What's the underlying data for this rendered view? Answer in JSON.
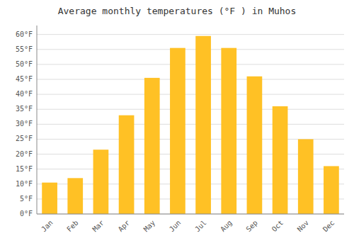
{
  "chart_data": {
    "type": "bar",
    "title": "Average monthly temperatures (°F ) in Muhos",
    "categories": [
      "Jan",
      "Feb",
      "Mar",
      "Apr",
      "May",
      "Jun",
      "Jul",
      "Aug",
      "Sep",
      "Oct",
      "Nov",
      "Dec"
    ],
    "values": [
      10.5,
      12.0,
      21.5,
      33.0,
      45.5,
      55.5,
      59.5,
      55.5,
      46.0,
      36.0,
      25.0,
      16.0
    ],
    "color": "#FFC125",
    "ylim": [
      0,
      63
    ],
    "yticks": [
      {
        "value": 0,
        "label": "0°F"
      },
      {
        "value": 5,
        "label": "5°F"
      },
      {
        "value": 10,
        "label": "10°F"
      },
      {
        "value": 15,
        "label": "15°F"
      },
      {
        "value": 20,
        "label": "20°F"
      },
      {
        "value": 25,
        "label": "25°F"
      },
      {
        "value": 30,
        "label": "30°F"
      },
      {
        "value": 35,
        "label": "35°F"
      },
      {
        "value": 40,
        "label": "40°F"
      },
      {
        "value": 45,
        "label": "45°F"
      },
      {
        "value": 50,
        "label": "50°F"
      },
      {
        "value": 55,
        "label": "55°F"
      },
      {
        "value": 60,
        "label": "60°F"
      }
    ],
    "grid": true
  }
}
